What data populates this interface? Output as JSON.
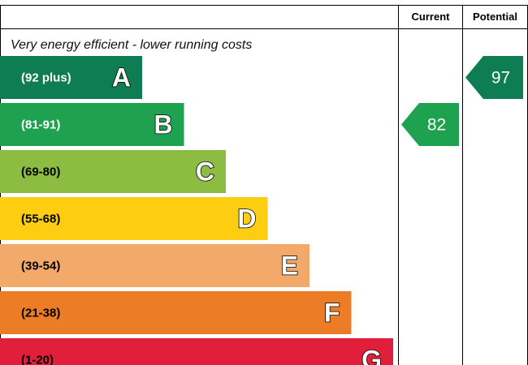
{
  "chart_data": {
    "type": "bar",
    "header": {
      "current": "Current",
      "potential": "Potential"
    },
    "tagline": "Very energy efficient - lower running costs",
    "bands": [
      {
        "letter": "A",
        "range": "(92 plus)",
        "color": "#0f7d54",
        "text_color": "#ffffff"
      },
      {
        "letter": "B",
        "range": "(81-91)",
        "color": "#1ea24f",
        "text_color": "#ffffff"
      },
      {
        "letter": "C",
        "range": "(69-80)",
        "color": "#8cbc41",
        "text_color": "#000000"
      },
      {
        "letter": "D",
        "range": "(55-68)",
        "color": "#fdcd12",
        "text_color": "#000000"
      },
      {
        "letter": "E",
        "range": "(39-54)",
        "color": "#f3a96a",
        "text_color": "#000000"
      },
      {
        "letter": "F",
        "range": "(21-38)",
        "color": "#ec7c26",
        "text_color": "#000000"
      },
      {
        "letter": "G",
        "range": "(1-20)",
        "color": "#e21f3b",
        "text_color": "#000000"
      }
    ],
    "ratings": {
      "current": {
        "value": 82,
        "band": "B",
        "color": "#1ea24f"
      },
      "potential": {
        "value": 97,
        "band": "A",
        "color": "#0f7d54"
      }
    }
  }
}
